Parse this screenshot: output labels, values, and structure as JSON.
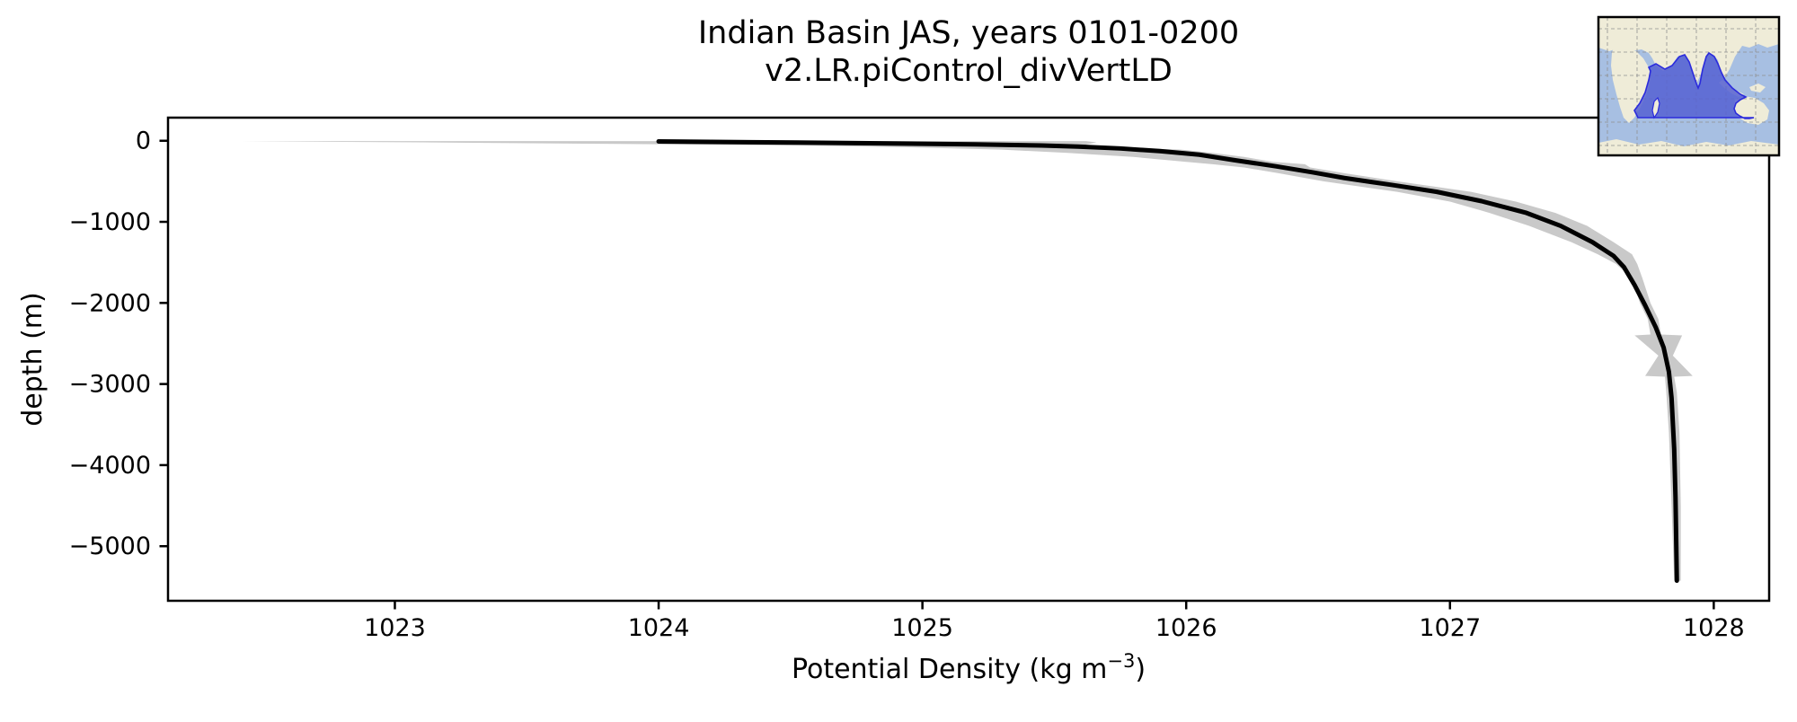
{
  "figure": {
    "title_line1": "Indian Basin JAS, years 0101-0200",
    "title_line2": "v2.LR.piControl_divVertLD",
    "background": "#ffffff"
  },
  "chart_data": {
    "type": "line",
    "title": "Indian Basin JAS, years 0101-0200",
    "subtitle": "v2.LR.piControl_divVertLD",
    "xlabel": "Potential Density (kg m⁻³)",
    "xlabel_parts": {
      "main": "Potential Density (kg m",
      "sup": "−3",
      "end": ")"
    },
    "ylabel": "depth (m)",
    "xlim": [
      1022.14,
      1028.21
    ],
    "ylim": [
      -5673,
      285
    ],
    "xticks": [
      1023,
      1024,
      1025,
      1026,
      1027,
      1028
    ],
    "xtick_labels": [
      "1023",
      "1024",
      "1025",
      "1026",
      "1027",
      "1028"
    ],
    "yticks": [
      0,
      -1000,
      -2000,
      -3000,
      -4000,
      -5000
    ],
    "ytick_labels": [
      "0",
      "−1000",
      "−2000",
      "−3000",
      "−4000",
      "−5000"
    ],
    "grid": false,
    "legend": "none",
    "line_color": "#000000",
    "line_width": 5,
    "band_color": "#c9c9c9",
    "series": [
      {
        "name": "mean potential density profile",
        "points": [
          [
            1024.0,
            -8
          ],
          [
            1024.35,
            -18
          ],
          [
            1024.8,
            -30
          ],
          [
            1025.2,
            -44
          ],
          [
            1025.45,
            -58
          ],
          [
            1025.59,
            -72
          ],
          [
            1025.75,
            -95
          ],
          [
            1025.9,
            -128
          ],
          [
            1026.05,
            -172
          ],
          [
            1026.18,
            -238
          ],
          [
            1026.34,
            -315
          ],
          [
            1026.48,
            -390
          ],
          [
            1026.6,
            -460
          ],
          [
            1026.78,
            -545
          ],
          [
            1026.95,
            -630
          ],
          [
            1027.12,
            -745
          ],
          [
            1027.29,
            -890
          ],
          [
            1027.42,
            -1050
          ],
          [
            1027.54,
            -1250
          ],
          [
            1027.62,
            -1420
          ],
          [
            1027.66,
            -1560
          ],
          [
            1027.7,
            -1780
          ],
          [
            1027.74,
            -2030
          ],
          [
            1027.78,
            -2300
          ],
          [
            1027.81,
            -2550
          ],
          [
            1027.83,
            -2850
          ],
          [
            1027.84,
            -3170
          ],
          [
            1027.85,
            -3800
          ],
          [
            1027.855,
            -4400
          ],
          [
            1027.858,
            -5000
          ],
          [
            1027.86,
            -5425
          ]
        ]
      }
    ],
    "band": {
      "name": "spread envelope (± std)",
      "depths": [
        -5,
        -20,
        -40,
        -60,
        -80,
        -110,
        -150,
        -200,
        -260,
        -290,
        -330,
        -400,
        -500,
        -630,
        -750,
        -890,
        -1050,
        -1250,
        -1400,
        -1520,
        -1700,
        -2000,
        -2200,
        -2390,
        -2400,
        -2650,
        -2900,
        -2910,
        -3100,
        -3600,
        -4500,
        -5425
      ],
      "lower": [
        1022.42,
        1023.1,
        1023.9,
        1024.55,
        1024.95,
        1025.3,
        1025.55,
        1025.8,
        1026.0,
        1026.1,
        1026.22,
        1026.35,
        1026.52,
        1026.8,
        1027.0,
        1027.15,
        1027.3,
        1027.46,
        1027.56,
        1027.63,
        1027.69,
        1027.72,
        1027.75,
        1027.76,
        1027.7,
        1027.79,
        1027.74,
        1027.815,
        1027.82,
        1027.83,
        1027.84,
        1027.85
      ],
      "upper": [
        1025.62,
        1025.66,
        1025.63,
        1025.6,
        1025.72,
        1025.98,
        1026.1,
        1026.22,
        1026.33,
        1026.45,
        1026.47,
        1026.6,
        1026.8,
        1027.08,
        1027.25,
        1027.4,
        1027.52,
        1027.62,
        1027.69,
        1027.71,
        1027.73,
        1027.76,
        1027.79,
        1027.8,
        1027.88,
        1027.845,
        1027.92,
        1027.85,
        1027.86,
        1027.87,
        1027.875,
        1027.875
      ]
    }
  },
  "inset_map": {
    "name": "Indian Ocean basin locator map",
    "ocean_color": "#a7bfe2",
    "land_color": "#efecd8",
    "highlight_fill": "#5560d2",
    "highlight_edge": "#2b2bdc",
    "grid_color": "#909090",
    "frame_color": "#000000"
  }
}
